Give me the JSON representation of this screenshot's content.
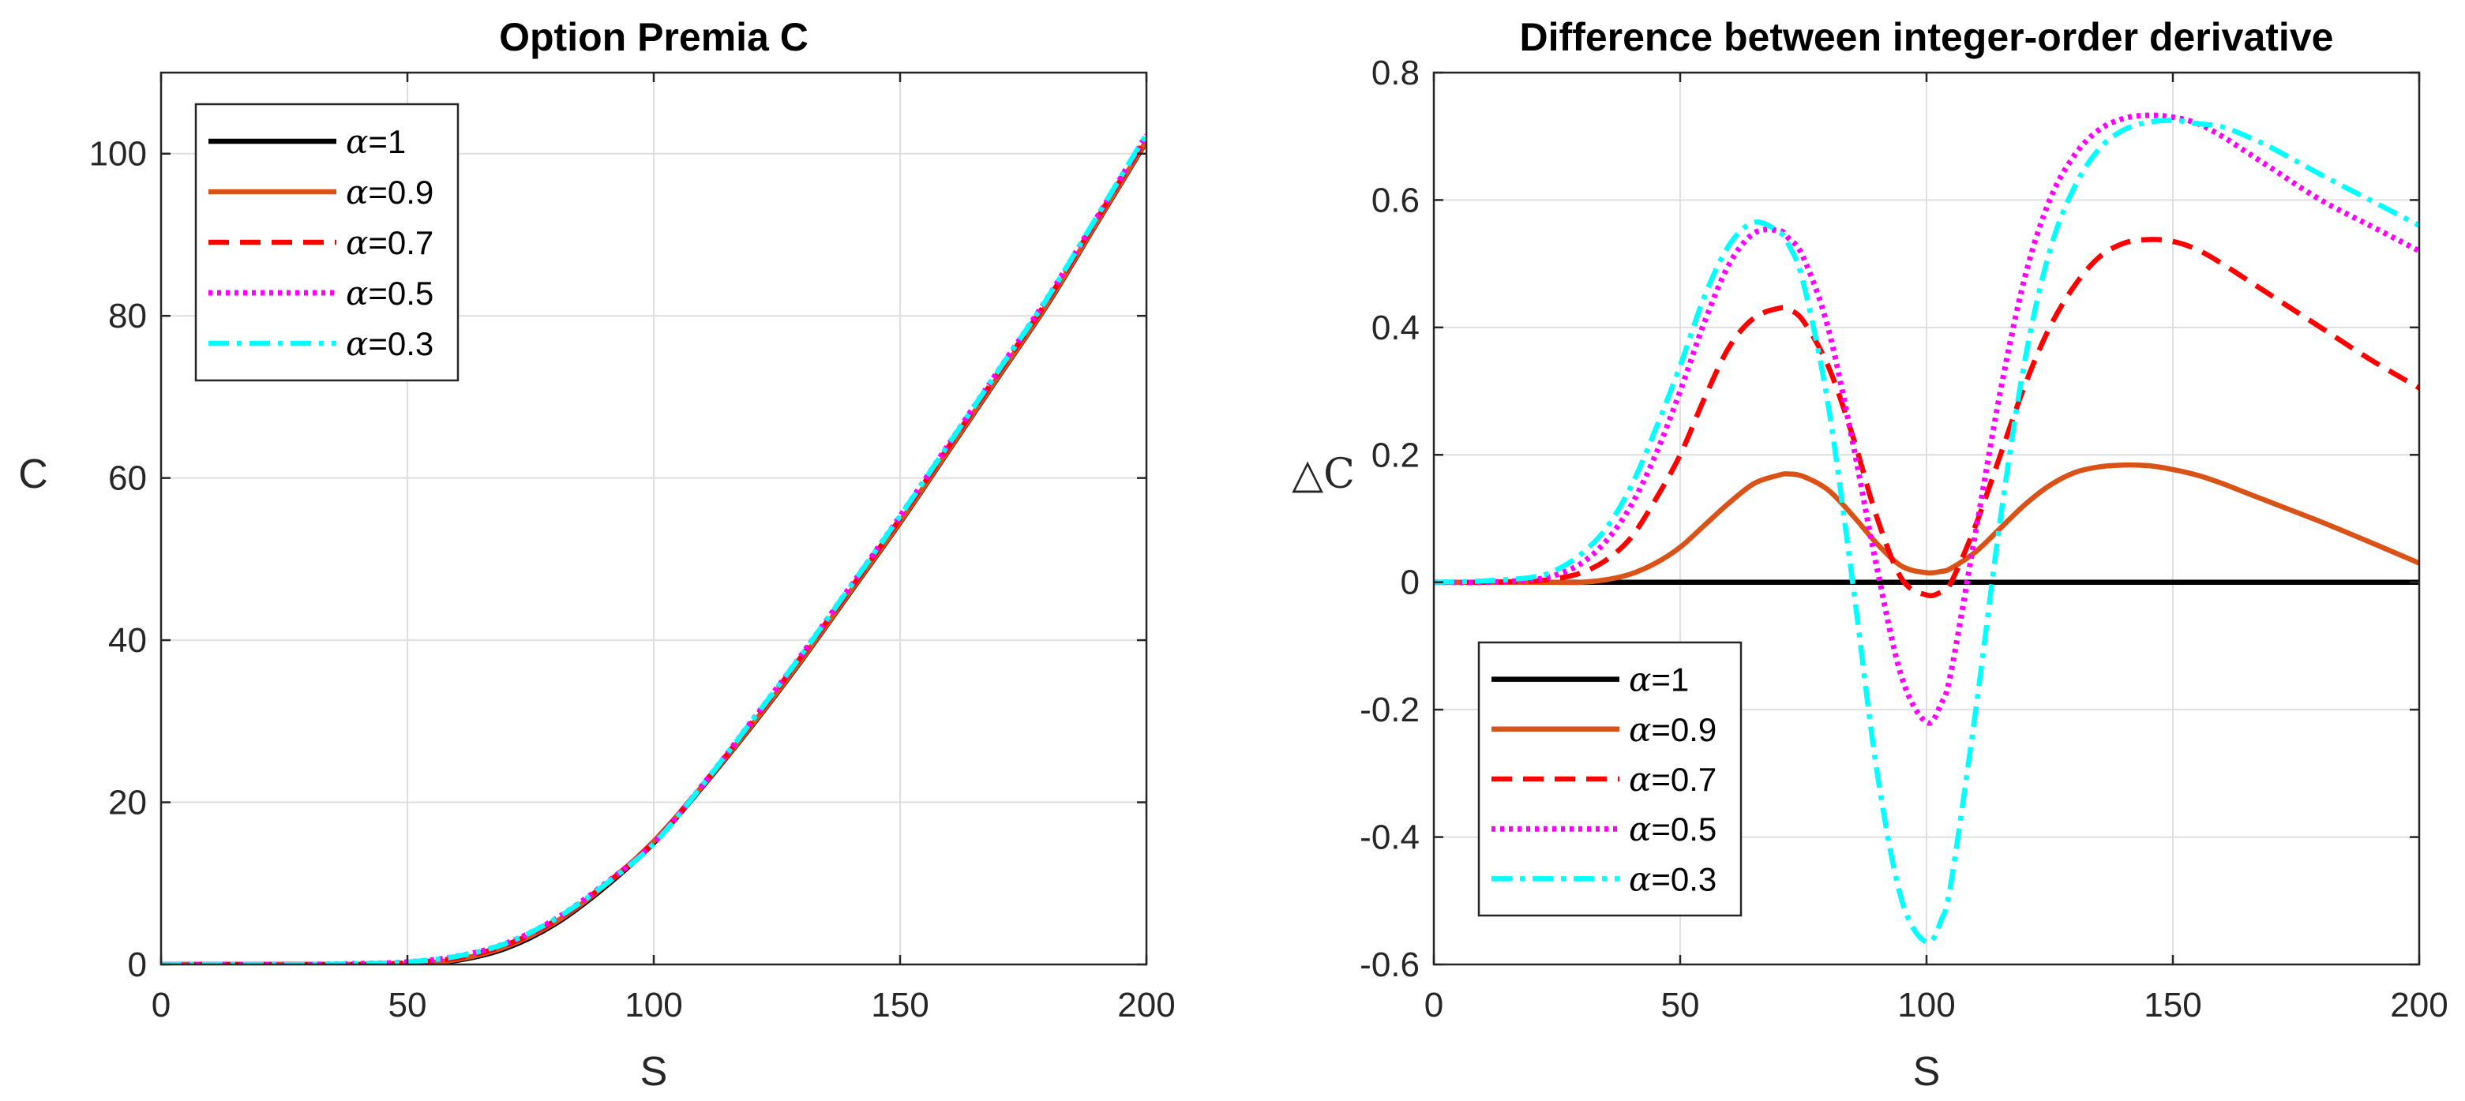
{
  "chart_data": [
    {
      "type": "line",
      "title": "Option Premia C",
      "xlabel": "S",
      "ylabel": "C",
      "xlim": [
        0,
        200
      ],
      "ylim": [
        0,
        110
      ],
      "xticks": [
        0,
        50,
        100,
        150,
        200
      ],
      "yticks": [
        0,
        20,
        40,
        60,
        80,
        100
      ],
      "xtick_labels": [
        "0",
        "50",
        "100",
        "150",
        "200"
      ],
      "ytick_labels": [
        "0",
        "20",
        "40",
        "60",
        "80",
        "100"
      ],
      "grid": true,
      "legend_position": "top-left",
      "x": [
        0,
        10,
        20,
        30,
        40,
        50,
        60,
        70,
        80,
        90,
        100,
        110,
        120,
        130,
        140,
        150,
        160,
        170,
        180,
        190,
        200
      ],
      "series": [
        {
          "name": "α=1",
          "alpha_label": "=1",
          "color": "#000000",
          "style": "solid",
          "values": [
            0,
            0,
            0,
            0,
            0,
            0.1,
            0.5,
            2,
            5,
            9.5,
            15,
            22,
            29.5,
            37.5,
            46,
            54.5,
            63.5,
            72.5,
            81.5,
            91.5,
            101.5
          ]
        },
        {
          "name": "α=0.9",
          "alpha_label": "=0.9",
          "color": "#d95319",
          "style": "solid",
          "values": [
            0,
            0,
            0,
            0,
            0,
            0.1,
            0.6,
            2.2,
            5.2,
            9.7,
            15.2,
            22.1,
            29.6,
            37.6,
            46.1,
            54.6,
            63.6,
            72.6,
            81.6,
            91.6,
            101.6
          ]
        },
        {
          "name": "α=0.7",
          "alpha_label": "=0.7",
          "color": "#ff0000",
          "style": "dashed",
          "values": [
            0,
            0,
            0,
            0,
            0,
            0.2,
            0.8,
            2.4,
            5.4,
            9.8,
            15.1,
            22.2,
            29.9,
            38,
            46.4,
            55,
            64,
            73,
            82,
            92,
            102
          ]
        },
        {
          "name": "α=0.5",
          "alpha_label": "=0.5",
          "color": "#ff00ff",
          "style": "dotted",
          "values": [
            0,
            0,
            0,
            0,
            0.1,
            0.3,
            1,
            2.6,
            5.6,
            9.9,
            15,
            22.2,
            30.1,
            38.2,
            46.7,
            55.3,
            64.3,
            73.3,
            82.3,
            92.2,
            102.3
          ]
        },
        {
          "name": "α=0.3",
          "alpha_label": "=0.3",
          "color": "#00ffff",
          "style": "dashdot",
          "values": [
            0,
            0,
            0,
            0,
            0.1,
            0.3,
            1,
            2.6,
            5.6,
            9.8,
            14.9,
            22.2,
            30.1,
            38.2,
            46.7,
            55.3,
            64.3,
            73.3,
            82.3,
            92.3,
            102.4
          ]
        }
      ]
    },
    {
      "type": "line",
      "title": "Difference between integer-order derivative",
      "xlabel": "S",
      "ylabel": "△C",
      "xlim": [
        0,
        200
      ],
      "ylim": [
        -0.6,
        0.8
      ],
      "xticks": [
        0,
        50,
        100,
        150,
        200
      ],
      "yticks": [
        -0.6,
        -0.4,
        -0.2,
        0,
        0.2,
        0.4,
        0.6,
        0.8
      ],
      "xtick_labels": [
        "0",
        "50",
        "100",
        "150",
        "200"
      ],
      "ytick_labels": [
        "-0.6",
        "-0.4",
        "-0.2",
        "0",
        "0.2",
        "0.4",
        "0.6",
        "0.8"
      ],
      "grid": true,
      "legend_position": "bottom-left",
      "x": [
        0,
        10,
        20,
        25,
        30,
        35,
        40,
        45,
        50,
        55,
        60,
        65,
        70,
        72,
        75,
        80,
        85,
        90,
        95,
        100,
        103,
        105,
        110,
        115,
        120,
        125,
        130,
        135,
        140,
        145,
        150,
        155,
        160,
        165,
        170,
        180,
        190,
        200
      ],
      "series": [
        {
          "name": "α=1",
          "alpha_label": "=1",
          "color": "#000000",
          "style": "solid",
          "values": [
            0,
            0,
            0,
            0,
            0,
            0,
            0,
            0,
            0,
            0,
            0,
            0,
            0,
            0,
            0,
            0,
            0,
            0,
            0,
            0,
            0,
            0,
            0,
            0,
            0,
            0,
            0,
            0,
            0,
            0,
            0,
            0,
            0,
            0,
            0,
            0,
            0,
            0
          ]
        },
        {
          "name": "α=0.9",
          "alpha_label": "=0.9",
          "color": "#d95319",
          "style": "solid",
          "values": [
            0,
            0,
            0,
            0,
            0,
            0.004,
            0.013,
            0.03,
            0.055,
            0.09,
            0.125,
            0.155,
            0.168,
            0.17,
            0.166,
            0.145,
            0.105,
            0.06,
            0.025,
            0.015,
            0.017,
            0.022,
            0.048,
            0.085,
            0.122,
            0.152,
            0.172,
            0.181,
            0.184,
            0.183,
            0.177,
            0.168,
            0.155,
            0.14,
            0.125,
            0.095,
            0.063,
            0.03
          ]
        },
        {
          "name": "α=0.7",
          "alpha_label": "=0.7",
          "color": "#ff0000",
          "style": "dashed",
          "values": [
            0,
            0,
            0.002,
            0.006,
            0.015,
            0.035,
            0.07,
            0.13,
            0.2,
            0.29,
            0.37,
            0.415,
            0.43,
            0.428,
            0.41,
            0.34,
            0.23,
            0.1,
            0.005,
            -0.02,
            -0.015,
            0,
            0.09,
            0.2,
            0.31,
            0.4,
            0.465,
            0.51,
            0.532,
            0.538,
            0.535,
            0.522,
            0.5,
            0.475,
            0.45,
            0.4,
            0.35,
            0.305
          ]
        },
        {
          "name": "α=0.5",
          "alpha_label": "=0.5",
          "color": "#ff00ff",
          "style": "dotted",
          "values": [
            0,
            0,
            0.004,
            0.012,
            0.03,
            0.065,
            0.12,
            0.2,
            0.3,
            0.41,
            0.5,
            0.548,
            0.552,
            0.54,
            0.51,
            0.4,
            0.22,
            0.02,
            -0.15,
            -0.22,
            -0.19,
            -0.14,
            0.08,
            0.3,
            0.48,
            0.6,
            0.67,
            0.71,
            0.728,
            0.733,
            0.73,
            0.72,
            0.7,
            0.675,
            0.65,
            0.6,
            0.56,
            0.52
          ]
        },
        {
          "name": "α=0.3",
          "alpha_label": "=0.3",
          "color": "#00ffff",
          "style": "dashdot",
          "values": [
            0,
            0.002,
            0.008,
            0.02,
            0.045,
            0.085,
            0.15,
            0.24,
            0.34,
            0.45,
            0.53,
            0.565,
            0.55,
            0.53,
            0.47,
            0.28,
            0,
            -0.3,
            -0.5,
            -0.565,
            -0.53,
            -0.47,
            -0.2,
            0.1,
            0.35,
            0.52,
            0.62,
            0.68,
            0.71,
            0.722,
            0.725,
            0.72,
            0.715,
            0.7,
            0.682,
            0.64,
            0.6,
            0.56
          ]
        }
      ]
    }
  ]
}
